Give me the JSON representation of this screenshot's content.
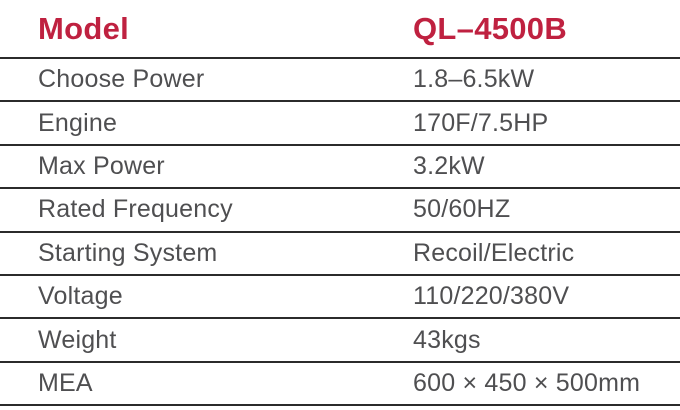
{
  "table": {
    "header": {
      "label": "Model",
      "value": "QL–4500B"
    },
    "rows": [
      {
        "label": "Choose Power",
        "value": "1.8–6.5kW"
      },
      {
        "label": "Engine",
        "value": "170F/7.5HP"
      },
      {
        "label": "Max Power",
        "value": "3.2kW"
      },
      {
        "label": "Rated Frequency",
        "value": "50/60HZ"
      },
      {
        "label": "Starting System",
        "value": "Recoil/Electric"
      },
      {
        "label": "Voltage",
        "value": "110/220/380V"
      },
      {
        "label": "Weight",
        "value": "43kgs"
      },
      {
        "label": "MEA",
        "value": "600 × 450 × 500mm"
      }
    ],
    "colors": {
      "accent_red": "#bf2140",
      "rule_line": "#2b2b2b",
      "body_text": "#4f4f51"
    }
  }
}
